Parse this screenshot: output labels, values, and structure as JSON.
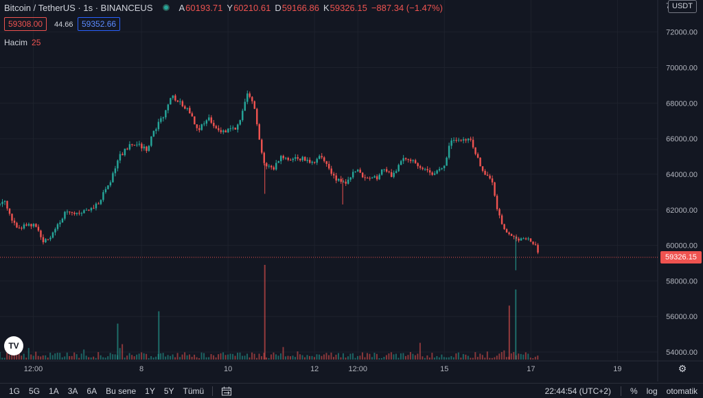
{
  "legend": {
    "title": "Bitcoin / TetherUS · 1s · BINANCEUS",
    "ohlc": [
      {
        "k": "A",
        "v": "60193.71"
      },
      {
        "k": "Y",
        "v": "60210.61"
      },
      {
        "k": "D",
        "v": "59166.86"
      },
      {
        "k": "K",
        "v": "59326.15"
      }
    ],
    "change": "−887.34 (−1.47%)"
  },
  "price_boxes": {
    "bid": "59308.00",
    "spread": "44.66",
    "ask": "59352.66"
  },
  "volume_legend": {
    "label": "Hacim",
    "value": "25"
  },
  "currency_badge": "USDT",
  "last_price": "59326.15",
  "logo": "TV",
  "toolbar": {
    "timeframes": [
      "1G",
      "5G",
      "1A",
      "3A",
      "6A",
      "Bu sene",
      "1Y",
      "5Y",
      "Tümü"
    ],
    "clock": "22:44:54 (UTC+2)",
    "percent": "%",
    "log": "log",
    "auto": "otomatik"
  },
  "colors": {
    "up": "#26a69a",
    "down": "#ef5350",
    "background": "#131722",
    "grid": "#1e222d"
  },
  "chart_data": {
    "type": "candlestick",
    "price_ticks": [
      72000,
      70000,
      68000,
      66000,
      64000,
      62000,
      60000,
      58000,
      56000,
      54000
    ],
    "price_tick_labels": [
      "72000.00",
      "70000.00",
      "68000.00",
      "66000.00",
      "64000.00",
      "62000.00",
      "60000.00",
      "58000.00",
      "56000.00",
      "54000.00"
    ],
    "top_partial_label": "7",
    "ylim": [
      53500,
      73800
    ],
    "x_ticks": [
      {
        "label": "12:00",
        "x": 9.5
      },
      {
        "label": "8",
        "x": 12
      },
      {
        "label": "10",
        "x": 14
      },
      {
        "label": "12",
        "x": 16
      },
      {
        "label": "12:00",
        "x": 17
      },
      {
        "label": "15",
        "x": 19
      },
      {
        "label": "17",
        "x": 21
      },
      {
        "label": "19",
        "x": 23
      }
    ],
    "xlim": [
      8.73,
      23.93
    ],
    "last_price": 59326.15,
    "path": [
      [
        8.73,
        62300
      ],
      [
        8.85,
        62600
      ],
      [
        9.0,
        61300
      ],
      [
        9.2,
        61000
      ],
      [
        9.4,
        61200
      ],
      [
        9.55,
        61050
      ],
      [
        9.75,
        60200
      ],
      [
        9.95,
        60600
      ],
      [
        10.25,
        61900
      ],
      [
        10.5,
        61700
      ],
      [
        10.8,
        62000
      ],
      [
        11.0,
        62400
      ],
      [
        11.25,
        63400
      ],
      [
        11.5,
        65000
      ],
      [
        11.7,
        65600
      ],
      [
        11.85,
        65700
      ],
      [
        12.15,
        65400
      ],
      [
        12.25,
        66200
      ],
      [
        12.55,
        67500
      ],
      [
        12.7,
        68400
      ],
      [
        12.9,
        68000
      ],
      [
        13.1,
        67600
      ],
      [
        13.3,
        66500
      ],
      [
        13.55,
        67100
      ],
      [
        13.75,
        66400
      ],
      [
        14.0,
        66500
      ],
      [
        14.25,
        66700
      ],
      [
        14.45,
        68700
      ],
      [
        14.6,
        68000
      ],
      [
        14.7,
        66200
      ],
      [
        14.85,
        64500
      ],
      [
        15.05,
        64300
      ],
      [
        15.2,
        65000
      ],
      [
        15.45,
        64900
      ],
      [
        15.75,
        64900
      ],
      [
        15.95,
        64700
      ],
      [
        16.15,
        65000
      ],
      [
        16.45,
        63800
      ],
      [
        16.7,
        63500
      ],
      [
        16.95,
        64300
      ],
      [
        17.15,
        63700
      ],
      [
        17.45,
        63800
      ],
      [
        17.6,
        64400
      ],
      [
        17.8,
        63900
      ],
      [
        18.05,
        64900
      ],
      [
        18.3,
        64700
      ],
      [
        18.55,
        64200
      ],
      [
        18.8,
        64000
      ],
      [
        19.0,
        64600
      ],
      [
        19.15,
        65900
      ],
      [
        19.4,
        65800
      ],
      [
        19.6,
        66000
      ],
      [
        19.75,
        65000
      ],
      [
        19.9,
        64100
      ],
      [
        20.1,
        63500
      ],
      [
        20.25,
        61800
      ],
      [
        20.4,
        60700
      ],
      [
        20.6,
        60500
      ],
      [
        20.75,
        60300
      ],
      [
        20.95,
        60400
      ],
      [
        21.1,
        60000
      ],
      [
        21.2,
        59330
      ]
    ],
    "volume_spikes": [
      {
        "x": 14.85,
        "value": 100,
        "dir": "down"
      },
      {
        "x": 20.65,
        "value": 74,
        "dir": "up"
      },
      {
        "x": 20.5,
        "value": 57,
        "dir": "down"
      },
      {
        "x": 12.4,
        "value": 51,
        "dir": "up"
      },
      {
        "x": 11.45,
        "value": 38,
        "dir": "up"
      }
    ]
  }
}
